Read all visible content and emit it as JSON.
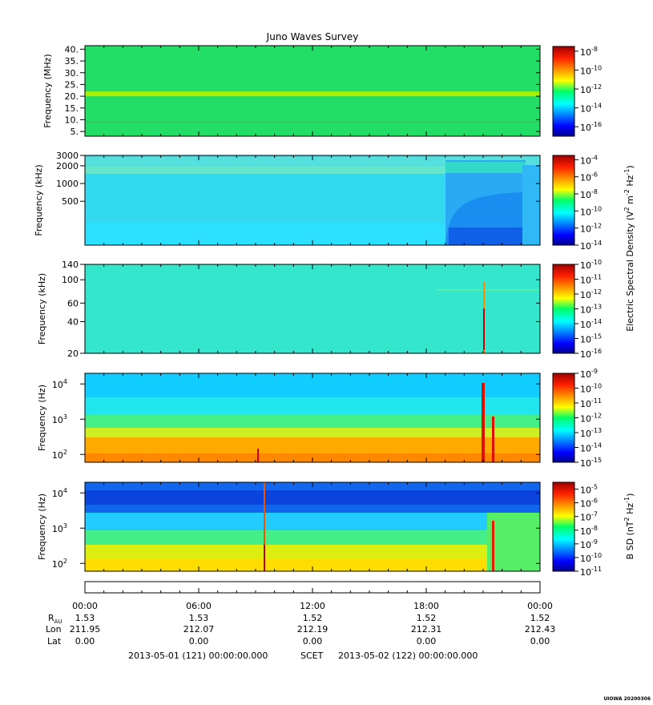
{
  "title": "Juno Waves Survey",
  "chart_data": [
    {
      "type": "heatmap",
      "ylabel": "Frequency (MHz)",
      "y_scale": "linear",
      "ylim": [
        3.0,
        41.5
      ],
      "yticks": [
        5,
        10,
        15,
        20,
        25,
        30,
        35,
        40
      ],
      "ytick_labels": [
        "5.",
        "10.",
        "15.",
        "20.",
        "25.",
        "30.",
        "35.",
        "40."
      ],
      "colorbar": {
        "scale": "log",
        "range_exp": [
          -17,
          -7.5
        ],
        "tick_exps": [
          -8,
          -10,
          -12,
          -14,
          -16
        ],
        "label": ""
      },
      "bands": [
        {
          "y": 21.0,
          "strength": 0.35
        },
        {
          "y": 9.0,
          "strength": 0.12
        }
      ]
    },
    {
      "type": "heatmap",
      "ylabel": "Frequency (kHz)",
      "y_scale": "log",
      "ylim": [
        90,
        3000
      ],
      "yticks": [
        500,
        1000,
        2000,
        3000
      ],
      "ytick_labels": [
        "500",
        "1000",
        "2000",
        "3000"
      ],
      "colorbar": {
        "scale": "log",
        "range_exp": [
          -14,
          -3.5
        ],
        "tick_exps": [
          -4,
          -6,
          -8,
          -10,
          -12,
          -14
        ],
        "label": "Electric Spectral Density (V² m⁻² Hz⁻¹)"
      },
      "events": [
        {
          "x_hours": 19.2,
          "note": "broadband enhancement"
        }
      ]
    },
    {
      "type": "heatmap",
      "ylabel": "Frequency (kHz)",
      "y_scale": "log",
      "ylim": [
        20,
        140
      ],
      "yticks": [
        20,
        40,
        60,
        100,
        140
      ],
      "ytick_labels": [
        "20",
        "40",
        "60",
        "100",
        "140"
      ],
      "colorbar": {
        "scale": "log",
        "range_exp": [
          -16,
          -10
        ],
        "tick_exps": [
          -10,
          -11,
          -12,
          -13,
          -14,
          -15,
          -16
        ],
        "label": ""
      },
      "events": [
        {
          "x_hours": 21.2
        }
      ]
    },
    {
      "type": "heatmap",
      "ylabel": "Frequency (Hz)",
      "y_scale": "log",
      "ylim": [
        60,
        20000
      ],
      "yticks": [
        100,
        1000,
        10000
      ],
      "ytick_exps": [
        2,
        3,
        4
      ],
      "colorbar": {
        "scale": "log",
        "range_exp": [
          -15,
          -9
        ],
        "tick_exps": [
          -9,
          -10,
          -11,
          -12,
          -13,
          -14,
          -15
        ],
        "label": ""
      },
      "events": [
        {
          "x_hours": 21.2
        },
        {
          "x_hours": 21.7
        },
        {
          "x_hours": 9.3
        }
      ]
    },
    {
      "type": "heatmap",
      "ylabel": "Frequency (Hz)",
      "y_scale": "log",
      "ylim": [
        60,
        20000
      ],
      "yticks": [
        100,
        1000,
        10000
      ],
      "ytick_exps": [
        2,
        3,
        4
      ],
      "colorbar": {
        "scale": "log",
        "range_exp": [
          -11,
          -4.5
        ],
        "tick_exps": [
          -5,
          -6,
          -7,
          -8,
          -9,
          -10,
          -11
        ],
        "label": "B SD (nT² Hz⁻¹)"
      },
      "events": [
        {
          "x_hours": 9.3
        },
        {
          "x_hours": 21.6
        }
      ]
    }
  ],
  "time_axis": {
    "xlim_hours": [
      0,
      24
    ],
    "ticks": [
      {
        "hours": 0,
        "label": "00:00",
        "rau": "1.53",
        "lon": "211.95",
        "lat": "0.00"
      },
      {
        "hours": 6,
        "label": "06:00",
        "rau": "1.53",
        "lon": "212.07",
        "lat": "0.00"
      },
      {
        "hours": 12,
        "label": "12:00",
        "rau": "1.52",
        "lon": "212.19",
        "lat": "0.00"
      },
      {
        "hours": 18,
        "label": "18:00",
        "rau": "1.52",
        "lon": "212.31",
        "lat": "0.00"
      },
      {
        "hours": 24,
        "label": "00:00",
        "rau": "1.52",
        "lon": "212.43",
        "lat": "0.00"
      }
    ],
    "row_labels": {
      "rau": "R",
      "rau_sub": "AU",
      "lon": "Lon",
      "lat": "Lat"
    }
  },
  "footer": {
    "start": "2013-05-01 (121) 00:00:00.000",
    "scet": "SCET",
    "end": "2013-05-02 (122) 00:00:00.000"
  },
  "credit": "UIOWA 20200306",
  "colorbar_labels": {
    "electric_prefix": "Electric Spectral Density (V",
    "electric_mid": " m",
    "electric_suffix": " Hz",
    "magnetic_prefix": "B SD (nT",
    "magnetic_suffix": " Hz",
    "exp_two": "2",
    "exp_minus_two": "-2",
    "exp_minus_one": "-1",
    "close": ")"
  },
  "exp_base": "10"
}
